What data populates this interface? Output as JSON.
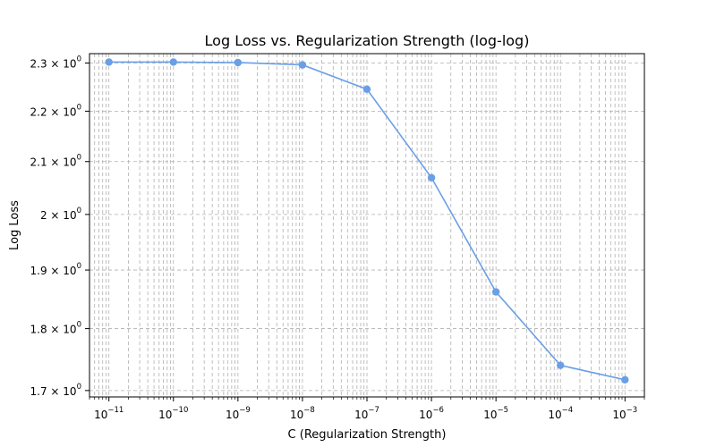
{
  "chart_data": {
    "type": "line",
    "title": "Log Loss vs. Regularization Strength (log-log)",
    "xlabel": "C (Regularization Strength)",
    "ylabel": "Log Loss",
    "xscale": "log",
    "yscale": "log",
    "xlim": [
      5e-12,
      0.002
    ],
    "ylim": [
      1.69,
      2.32
    ],
    "grid": true,
    "grid_which": "both",
    "x_ticks": [
      {
        "value": 1e-11,
        "base": "10",
        "exponent": "−11"
      },
      {
        "value": 1e-10,
        "base": "10",
        "exponent": "−10"
      },
      {
        "value": 1e-09,
        "base": "10",
        "exponent": "−9"
      },
      {
        "value": 1e-08,
        "base": "10",
        "exponent": "−8"
      },
      {
        "value": 1e-07,
        "base": "10",
        "exponent": "−7"
      },
      {
        "value": 1e-06,
        "base": "10",
        "exponent": "−6"
      },
      {
        "value": 1e-05,
        "base": "10",
        "exponent": "−5"
      },
      {
        "value": 0.0001,
        "base": "10",
        "exponent": "−4"
      },
      {
        "value": 0.001,
        "base": "10",
        "exponent": "−3"
      }
    ],
    "y_ticks": [
      {
        "value": 1.7,
        "mantissa": "1.7 × 10",
        "exponent": "0"
      },
      {
        "value": 1.8,
        "mantissa": "1.8 × 10",
        "exponent": "0"
      },
      {
        "value": 1.9,
        "mantissa": "1.9 × 10",
        "exponent": "0"
      },
      {
        "value": 2.0,
        "mantissa": "2 × 10",
        "exponent": "0"
      },
      {
        "value": 2.1,
        "mantissa": "2.1 × 10",
        "exponent": "0"
      },
      {
        "value": 2.2,
        "mantissa": "2.2 × 10",
        "exponent": "0"
      },
      {
        "value": 2.3,
        "mantissa": "2.3 × 10",
        "exponent": "0"
      }
    ],
    "series": [
      {
        "name": "Log Loss",
        "color": "#6a9fe6",
        "marker": "circle",
        "x": [
          1e-11,
          1e-10,
          1e-09,
          1e-08,
          1e-07,
          1e-06,
          1e-05,
          0.0001,
          0.001
        ],
        "y": [
          2.302,
          2.302,
          2.301,
          2.296,
          2.245,
          2.069,
          1.862,
          1.74,
          1.717
        ]
      }
    ]
  }
}
